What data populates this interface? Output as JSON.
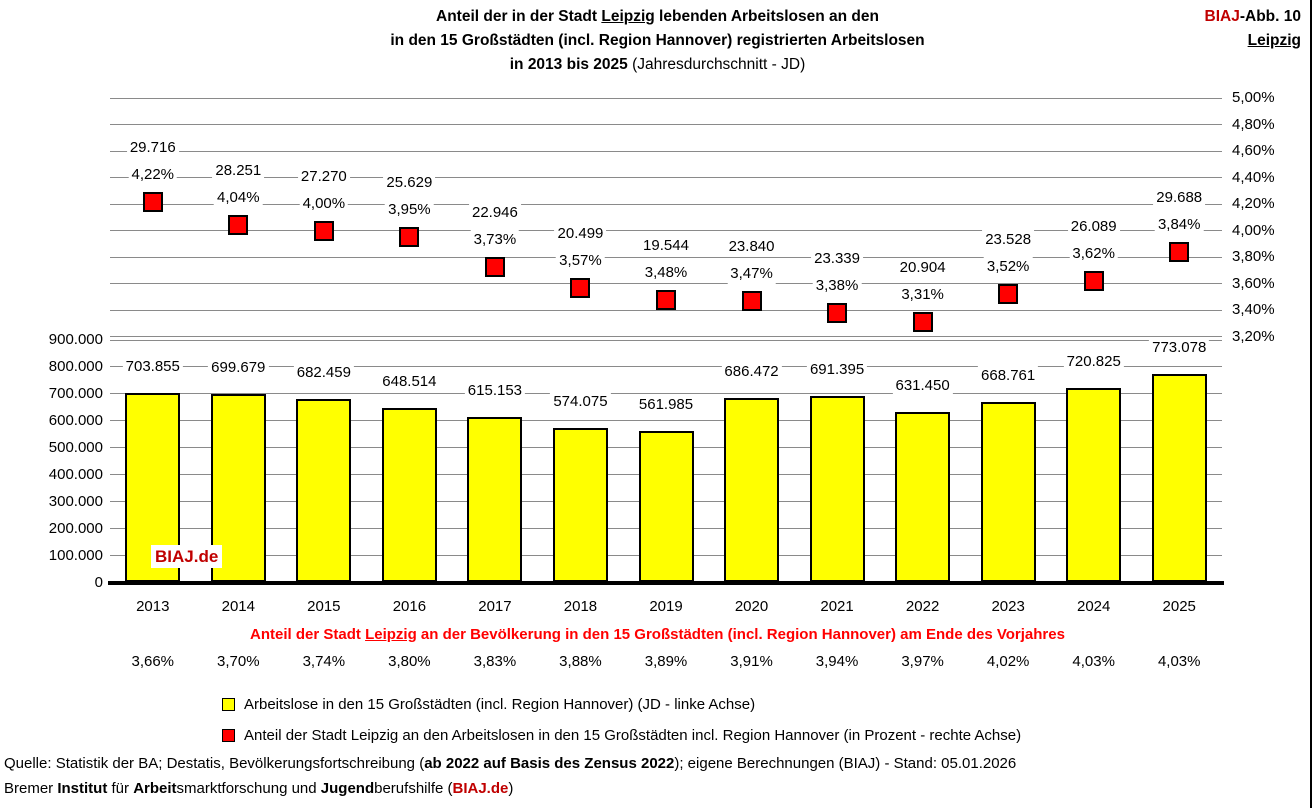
{
  "header": {
    "title": {
      "line1_pre": "Anteil der in der Stadt ",
      "line1_city": "Leipzig",
      "line1_post": " lebenden Arbeitslosen an den",
      "line2": "in den 15 Großstädten (incl. Region Hannover) registrierten Arbeitslosen",
      "line3_bold": "in 2013 bis 2025",
      "line3_rest": " (Jahresdurchschnitt - JD)"
    },
    "figure_label": {
      "brand": "BIAJ",
      "rest": "-Abb. 10",
      "city": "Leipzig"
    }
  },
  "watermark": "BIAJ.de",
  "chart_data": {
    "type": "bar",
    "title": "Anteil der in der Stadt Leipzig lebenden Arbeitslosen an den in den 15 Großstädten (incl. Region Hannover) registrierten Arbeitslosen in 2013 bis 2025 (Jahresdurchschnitt - JD)",
    "categories": [
      "2013",
      "2014",
      "2015",
      "2016",
      "2017",
      "2018",
      "2019",
      "2020",
      "2021",
      "2022",
      "2023",
      "2024",
      "2025"
    ],
    "series": [
      {
        "name": "Arbeitslose in den 15 Großstädten (incl. Region Hannover) (JD - linke Achse)",
        "type": "bar",
        "axis": "left",
        "color": "#FFFF00",
        "values": [
          703855,
          699679,
          682459,
          648514,
          615153,
          574075,
          561985,
          686472,
          691395,
          631450,
          668761,
          720825,
          773078
        ],
        "labels": [
          "703.855",
          "699.679",
          "682.459",
          "648.514",
          "615.153",
          "574.075",
          "561.985",
          "686.472",
          "691.395",
          "631.450",
          "668.761",
          "720.825",
          "773.078"
        ]
      },
      {
        "name": "Anteil der Stadt Leipzig an den Arbeitslosen in den 15 Großstädten incl. Region Hannover (in Prozent - rechte Achse)",
        "type": "scatter",
        "axis": "right",
        "color": "#FF0000",
        "values_percent": [
          4.22,
          4.04,
          4.0,
          3.95,
          3.73,
          3.57,
          3.48,
          3.47,
          3.38,
          3.31,
          3.52,
          3.62,
          3.84
        ],
        "point_labels_absolute": [
          "29.716",
          "28.251",
          "27.270",
          "25.629",
          "22.946",
          "20.499",
          "19.544",
          "23.840",
          "23.339",
          "20.904",
          "23.528",
          "26.089",
          "29.688"
        ],
        "point_labels_percent": [
          "4,22%",
          "4,04%",
          "4,00%",
          "3,95%",
          "3,73%",
          "3,57%",
          "3,48%",
          "3,47%",
          "3,38%",
          "3,31%",
          "3,52%",
          "3,62%",
          "3,84%"
        ]
      }
    ],
    "left_axis": {
      "min": 0,
      "max": 900000,
      "tick_values": [
        900000,
        800000,
        700000,
        600000,
        500000,
        400000,
        300000,
        200000,
        100000,
        0
      ],
      "tick_labels": [
        "900.000",
        "800.000",
        "700.000",
        "600.000",
        "500.000",
        "400.000",
        "300.000",
        "200.000",
        "100.000",
        "0"
      ]
    },
    "right_axis": {
      "min_shown": 3.2,
      "max_shown": 5.0,
      "tick_values": [
        5.0,
        4.8,
        4.6,
        4.4,
        4.2,
        4.0,
        3.8,
        3.6,
        3.4,
        3.2
      ],
      "tick_labels": [
        "5,00%",
        "4,80%",
        "4,60%",
        "4,40%",
        "4,20%",
        "4,00%",
        "3,80%",
        "3,60%",
        "3,40%",
        "3,20%"
      ]
    },
    "grid": true,
    "legend_position": "bottom"
  },
  "population_row": {
    "caption_pre": "Anteil der Stadt ",
    "caption_city": "Leipzig",
    "caption_post": " an der Bevölkerung in den 15 Großstädten (incl. Region Hannover) am Ende des Vorjahres",
    "values": [
      "3,66%",
      "3,70%",
      "3,74%",
      "3,80%",
      "3,83%",
      "3,88%",
      "3,89%",
      "3,91%",
      "3,94%",
      "3,97%",
      "4,02%",
      "4,03%",
      "4,03%"
    ]
  },
  "legend": {
    "items": [
      {
        "swatch_color": "#FFFF00",
        "label": "Arbeitslose in den 15 Großstädten (incl. Region Hannover) (JD - linke Achse)"
      },
      {
        "swatch_color": "#FF0000",
        "label": "Anteil der Stadt Leipzig an den Arbeitslosen in den 15 Großstädten incl. Region Hannover (in Prozent - rechte Achse)"
      }
    ]
  },
  "footer": {
    "line1_pre": "Quelle: Statistik der BA; Destatis, Bevölkerungsfortschreibung (",
    "line1_bold": "ab 2022 auf Basis des Zensus 2022",
    "line1_post": "); eigene Berechnungen (BIAJ) - Stand: 05.01.2026",
    "line2": {
      "p1": "Bremer ",
      "b1": "Institut",
      "p2": " für ",
      "b2": "Arbeit",
      "p3": "smarktforschung und ",
      "b3": "Jugend",
      "p4": "berufshilfe (",
      "brand": "BIAJ.de",
      "p5": ")"
    }
  },
  "colors": {
    "bar_fill": "#FFFF00",
    "point_fill": "#FF0000",
    "brand_red": "#C00000",
    "caption_red": "#FF0000",
    "grid_gray": "#8A8A8A"
  }
}
